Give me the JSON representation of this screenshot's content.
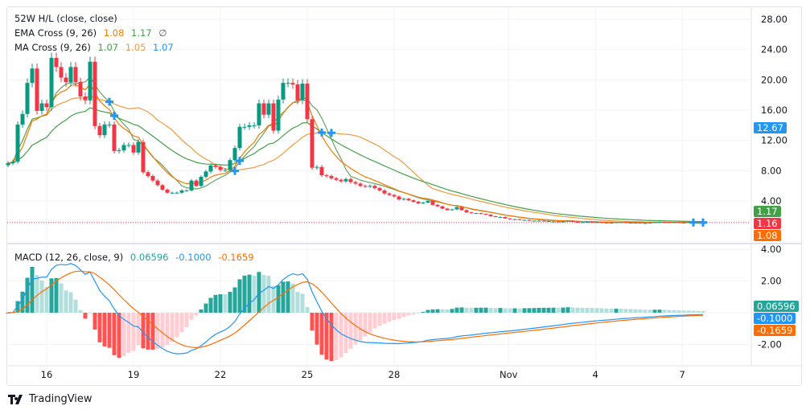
{
  "legend": {
    "hl": "52W H/L (close, close)",
    "ema_title": "EMA Cross (9, 26)",
    "ema_vals": [
      "1.08",
      "1.17"
    ],
    "ema_extra": "∅",
    "ma_title": "MA Cross (9, 26)",
    "ma_vals": [
      "1.07",
      "1.05",
      "1.07"
    ],
    "macd_title": "MACD (12, 26, close, 9)",
    "macd_vals": [
      "0.06596",
      "-0.1000",
      "-0.1659"
    ]
  },
  "price_labels": {
    "hl": "12.67",
    "ema26": "1.17",
    "last": "1.16",
    "ema9": "1.08"
  },
  "macd_labels": {
    "hist": "0.06596",
    "macd": "-0.1000",
    "signal": "-0.1659"
  },
  "brand": "TradingView",
  "colors": {
    "up": "#089981",
    "down": "#f23645",
    "ema_fast": "#f57c00",
    "ema_slow": "#43a047",
    "ma_fast": "#66a45f",
    "ma_slow": "#ef9a40",
    "cross": "#2196f3",
    "macd": "#2196f3",
    "signal": "#ff6d00",
    "hist_up_strong": "#26a69a",
    "hist_up_weak": "#b2dfdb",
    "hist_down_strong": "#ff5252",
    "hist_down_weak": "#ffcdd2"
  },
  "chart_data": [
    {
      "type": "candlestick",
      "title": "",
      "ylim": [
        0,
        28
      ],
      "yticks": [
        "28.00",
        "24.00",
        "20.00",
        "16.00",
        "12.00",
        "8.00",
        "4.00"
      ],
      "yticks_values": [
        28,
        24,
        20,
        16,
        12,
        8,
        4
      ],
      "xticks": [
        "16",
        "19",
        "22",
        "25",
        "28",
        "Nov",
        "4",
        "7"
      ],
      "xticks_index": [
        8,
        26,
        44,
        62,
        80,
        103.7,
        121.7,
        139.7
      ],
      "last_price": 1.16,
      "grid": true,
      "close": [
        9.0,
        9.2,
        14.1,
        15.5,
        19.6,
        21.5,
        15.9,
        16.9,
        16.4,
        22.9,
        21.7,
        20.3,
        19.7,
        21.7,
        19.7,
        17.8,
        17.3,
        22.4,
        13.9,
        12.7,
        14.1,
        14.1,
        10.6,
        10.7,
        11.4,
        11.4,
        10.4,
        11.8,
        7.8,
        7.3,
        6.7,
        6.1,
        5.5,
        5.1,
        5.1,
        5.1,
        5.4,
        5.4,
        6.7,
        6.0,
        7.2,
        7.9,
        8.7,
        8.5,
        8.1,
        8.1,
        9.4,
        11.0,
        13.8,
        13.8,
        14.0,
        14.0,
        16.9,
        15.4,
        16.9,
        13.3,
        17.4,
        19.6,
        19.6,
        19.4,
        17.3,
        19.5,
        14.8,
        8.4,
        8.5,
        7.4,
        7.3,
        7.0,
        6.8,
        6.6,
        6.9,
        6.5,
        6.3,
        6.0,
        5.9,
        6.0,
        5.7,
        5.4,
        5.0,
        4.8,
        4.6,
        4.2,
        4.3,
        4.1,
        3.9,
        3.7,
        3.8,
        4.0,
        3.5,
        3.3,
        3.0,
        2.8,
        2.9,
        3.2,
        2.8,
        2.5,
        2.4,
        2.4,
        2.3,
        2.2,
        2.0,
        1.9,
        1.9,
        1.7,
        1.6,
        1.6,
        1.5,
        1.5,
        1.4,
        1.4,
        1.4,
        1.35,
        1.3,
        1.3,
        1.25,
        1.3,
        1.4,
        1.25,
        1.2,
        1.2,
        1.25,
        1.2,
        1.2,
        1.15,
        1.1,
        1.15,
        1.2,
        1.2,
        1.15,
        1.15,
        1.15,
        1.1,
        1.1,
        1.15,
        1.2,
        1.25,
        1.2,
        1.15,
        1.2,
        1.15,
        1.15,
        1.2,
        1.15,
        1.15,
        1.16
      ]
    },
    {
      "type": "macd",
      "ylim": [
        -3.4,
        4.3
      ],
      "yticks": [
        "4.00",
        "2.00",
        "-2.00"
      ],
      "yticks_values": [
        4,
        2,
        -2
      ],
      "params": {
        "fast": 12,
        "slow": 26,
        "signal": 9
      }
    }
  ]
}
